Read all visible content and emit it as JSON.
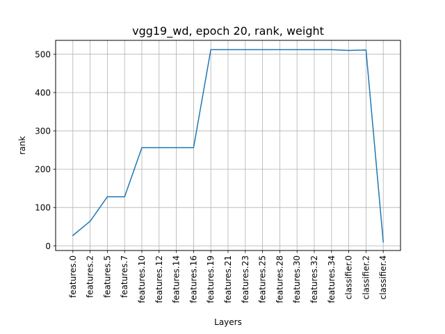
{
  "chart_data": {
    "type": "line",
    "title": "vgg19_wd, epoch 20, rank, weight",
    "xlabel": "Layers",
    "ylabel": "rank",
    "categories": [
      "features.0",
      "features.2",
      "features.5",
      "features.7",
      "features.10",
      "features.12",
      "features.14",
      "features.16",
      "features.19",
      "features.21",
      "features.23",
      "features.25",
      "features.28",
      "features.30",
      "features.32",
      "features.34",
      "classifier.0",
      "classifier.2",
      "classifier.4"
    ],
    "series": [
      {
        "values": [
          27,
          64,
          128,
          128,
          256,
          256,
          256,
          256,
          512,
          512,
          512,
          512,
          512,
          512,
          512,
          512,
          510,
          511,
          10
        ],
        "color": "#1f77b4"
      }
    ],
    "ylim": [
      -12.25,
      536.25
    ],
    "yticks": [
      0,
      100,
      200,
      300,
      400,
      500
    ],
    "grid": true
  }
}
